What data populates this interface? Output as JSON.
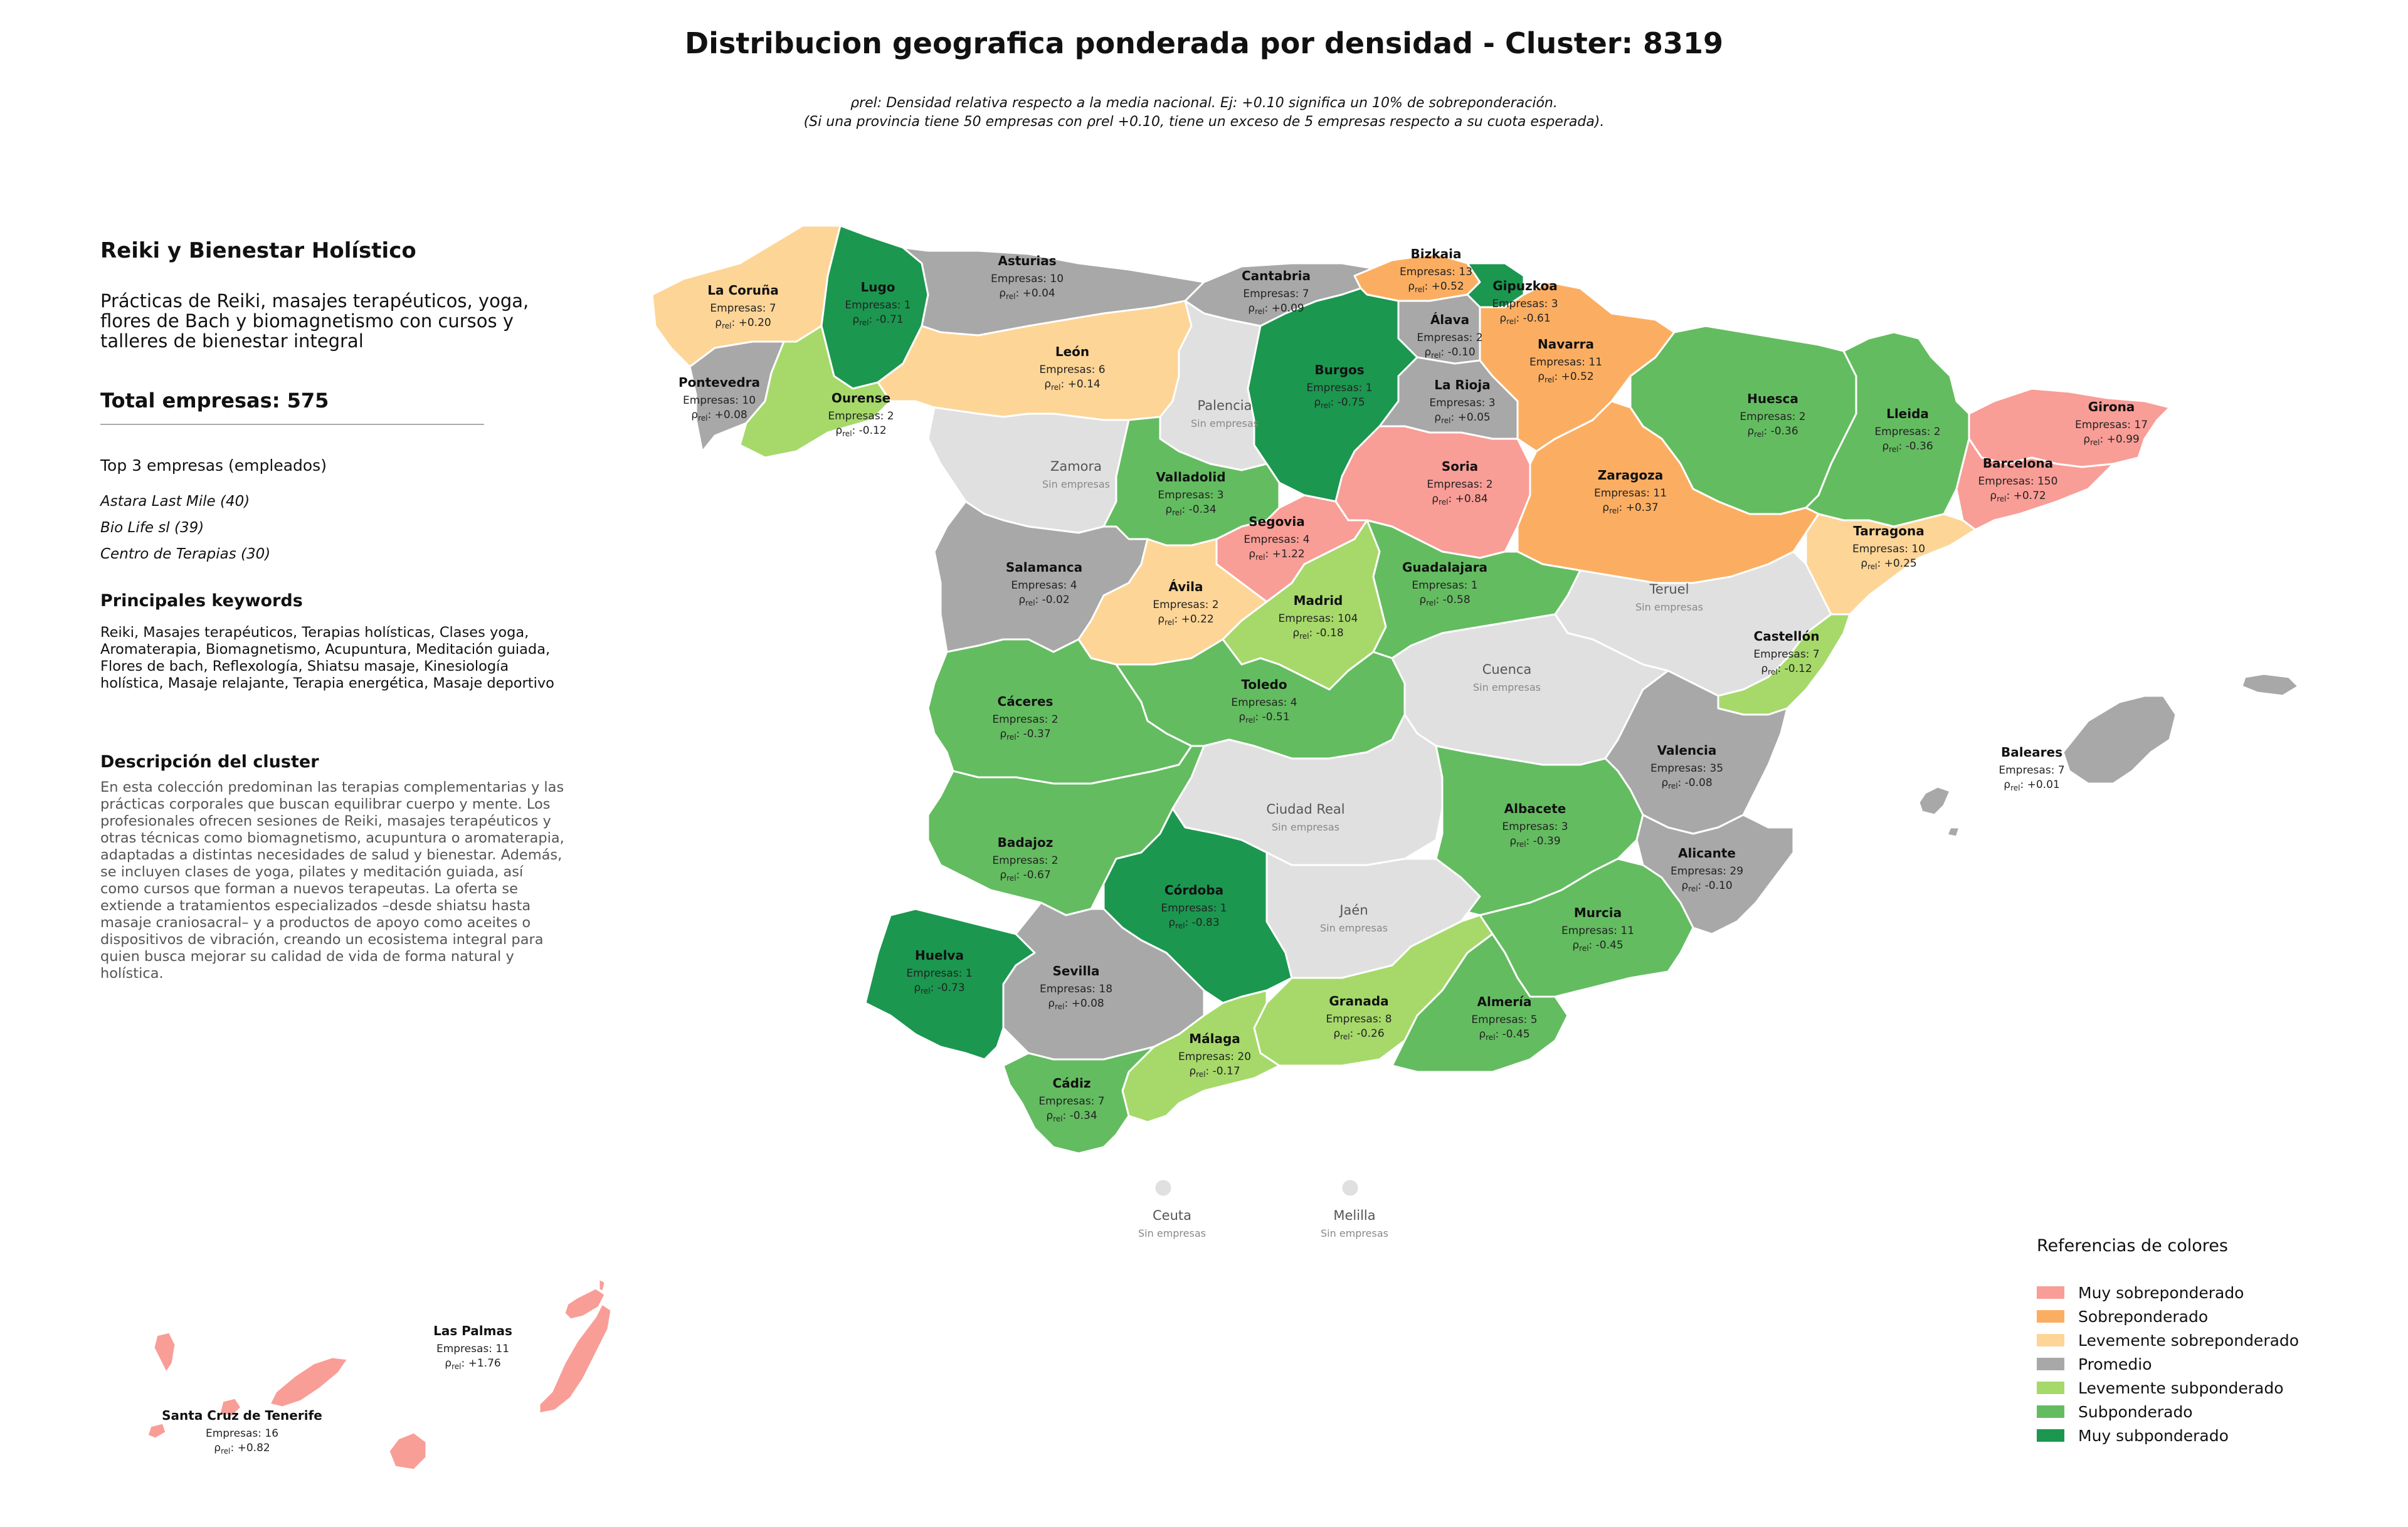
{
  "title": "Distribucion geografica ponderada por densidad - Cluster: 8319",
  "subtitle_line1": "ρrel: Densidad relativa respecto a la media nacional. Ej: +0.10 significa un 10% de sobreponderación.",
  "subtitle_line2": "(Si una provincia tiene 50 empresas con ρrel +0.10, tiene un exceso de 5 empresas respecto a su cuota esperada).",
  "panel": {
    "title": "Reiki y Bienestar Holístico",
    "description": "Prácticas de Reiki, masajes terapéuticos, yoga, flores de Bach y biomagnetismo con cursos y talleres de bienestar integral",
    "total": "Total empresas: 575",
    "top3_title": "Top 3 empresas (empleados)",
    "top3": [
      "Astara Last Mile (40)",
      "Bio Life sl (39)",
      "Centro de Terapias (30)"
    ],
    "keywords_title": "Principales keywords",
    "keywords": "Reiki, Masajes terapéuticos, Terapias holísticas, Clases yoga, Aromaterapia, Biomagnetismo, Acupuntura, Meditación guiada, Flores de bach, Reflexología, Shiatsu masaje, Kinesiología holística, Masaje relajante, Terapia energética, Masaje deportivo",
    "cluster_desc_title": "Descripción del cluster",
    "cluster_desc": "En esta colección predominan las terapias complementarias y las prácticas corporales que buscan equilibrar cuerpo y mente. Los profesionales ofrecen sesiones de Reiki, masajes terapéuticos y otras técnicas como biomagnetismo, acupuntura o aromaterapia, adaptadas a distintas necesidades de salud y bienestar. Además, se incluyen clases de yoga, pilates y meditación guiada, así como cursos que forman a nuevos terapeutas. La oferta se extiende a tratamientos especializados –desde shiatsu hasta masaje craniosacral– y a productos de apoyo como aceites o dispositivos de vibración, creando un ecosistema integral para quien busca mejorar su calidad de vida de forma natural y holística."
  },
  "colors": {
    "muy_sobre": "#f99d97",
    "sobre": "#fbae62",
    "lev_sobre": "#fdd597",
    "promedio": "#a8a8a8",
    "lev_sub": "#a6d96a",
    "sub": "#64bc61",
    "muy_sub": "#1b9750",
    "sin": "#e0e0e0"
  },
  "legend": {
    "title": "Referencias de colores",
    "items": [
      {
        "label": "Muy sobreponderado",
        "key": "muy_sobre"
      },
      {
        "label": "Sobreponderado",
        "key": "sobre"
      },
      {
        "label": "Levemente sobreponderado",
        "key": "lev_sobre"
      },
      {
        "label": "Promedio",
        "key": "promedio"
      },
      {
        "label": "Levemente subponderado",
        "key": "lev_sub"
      },
      {
        "label": "Subponderado",
        "key": "sub"
      },
      {
        "label": "Muy subponderado",
        "key": "muy_sub"
      }
    ]
  },
  "provinces": [
    {
      "id": "lacoruna",
      "name": "La Coruña",
      "empresas": "Empresas: 7",
      "rho": "+0.20",
      "cat": "lev_sobre"
    },
    {
      "id": "lugo",
      "name": "Lugo",
      "empresas": "Empresas: 1",
      "rho": "-0.71",
      "cat": "muy_sub"
    },
    {
      "id": "asturias",
      "name": "Asturias",
      "empresas": "Empresas: 10",
      "rho": "+0.04",
      "cat": "promedio"
    },
    {
      "id": "cantabria",
      "name": "Cantabria",
      "empresas": "Empresas: 7",
      "rho": "+0.09",
      "cat": "promedio"
    },
    {
      "id": "bizkaia",
      "name": "Bizkaia",
      "empresas": "Empresas: 13",
      "rho": "+0.52",
      "cat": "sobre"
    },
    {
      "id": "gipuzkoa",
      "name": "Gipuzkoa",
      "empresas": "Empresas: 3",
      "rho": "-0.61",
      "cat": "muy_sub"
    },
    {
      "id": "alava",
      "name": "Álava",
      "empresas": "Empresas: 2",
      "rho": "-0.10",
      "cat": "promedio"
    },
    {
      "id": "navarra",
      "name": "Navarra",
      "empresas": "Empresas: 11",
      "rho": "+0.52",
      "cat": "sobre"
    },
    {
      "id": "pontevedra",
      "name": "Pontevedra",
      "empresas": "Empresas: 10",
      "rho": "+0.08",
      "cat": "promedio"
    },
    {
      "id": "ourense",
      "name": "Ourense",
      "empresas": "Empresas: 2",
      "rho": "-0.12",
      "cat": "lev_sub"
    },
    {
      "id": "leon",
      "name": "León",
      "empresas": "Empresas: 6",
      "rho": "+0.14",
      "cat": "lev_sobre"
    },
    {
      "id": "palencia",
      "name": "Palencia",
      "empresas": "Sin empresas",
      "rho": null,
      "cat": "sin"
    },
    {
      "id": "burgos",
      "name": "Burgos",
      "empresas": "Empresas: 1",
      "rho": "-0.75",
      "cat": "muy_sub"
    },
    {
      "id": "larioja",
      "name": "La Rioja",
      "empresas": "Empresas: 3",
      "rho": "+0.05",
      "cat": "promedio"
    },
    {
      "id": "huesca",
      "name": "Huesca",
      "empresas": "Empresas: 2",
      "rho": "-0.36",
      "cat": "sub"
    },
    {
      "id": "lleida",
      "name": "Lleida",
      "empresas": "Empresas: 2",
      "rho": "-0.36",
      "cat": "sub"
    },
    {
      "id": "girona",
      "name": "Girona",
      "empresas": "Empresas: 17",
      "rho": "+0.99",
      "cat": "muy_sobre"
    },
    {
      "id": "barcelona",
      "name": "Barcelona",
      "empresas": "Empresas: 150",
      "rho": "+0.72",
      "cat": "muy_sobre"
    },
    {
      "id": "zamora",
      "name": "Zamora",
      "empresas": "Sin empresas",
      "rho": null,
      "cat": "sin"
    },
    {
      "id": "valladolid",
      "name": "Valladolid",
      "empresas": "Empresas: 3",
      "rho": "-0.34",
      "cat": "sub"
    },
    {
      "id": "soria",
      "name": "Soria",
      "empresas": "Empresas: 2",
      "rho": "+0.84",
      "cat": "muy_sobre"
    },
    {
      "id": "zaragoza",
      "name": "Zaragoza",
      "empresas": "Empresas: 11",
      "rho": "+0.37",
      "cat": "sobre"
    },
    {
      "id": "tarragona",
      "name": "Tarragona",
      "empresas": "Empresas: 10",
      "rho": "+0.25",
      "cat": "lev_sobre"
    },
    {
      "id": "salamanca",
      "name": "Salamanca",
      "empresas": "Empresas: 4",
      "rho": "-0.02",
      "cat": "promedio"
    },
    {
      "id": "segovia",
      "name": "Segovia",
      "empresas": "Empresas: 4",
      "rho": "+1.22",
      "cat": "muy_sobre"
    },
    {
      "id": "avila",
      "name": "Ávila",
      "empresas": "Empresas: 2",
      "rho": "+0.22",
      "cat": "lev_sobre"
    },
    {
      "id": "madrid",
      "name": "Madrid",
      "empresas": "Empresas: 104",
      "rho": "-0.18",
      "cat": "lev_sub"
    },
    {
      "id": "guadalajara",
      "name": "Guadalajara",
      "empresas": "Empresas: 1",
      "rho": "-0.58",
      "cat": "sub"
    },
    {
      "id": "teruel",
      "name": "Teruel",
      "empresas": "Sin empresas",
      "rho": null,
      "cat": "sin"
    },
    {
      "id": "castellon",
      "name": "Castellón",
      "empresas": "Empresas: 7",
      "rho": "-0.12",
      "cat": "lev_sub"
    },
    {
      "id": "caceres",
      "name": "Cáceres",
      "empresas": "Empresas: 2",
      "rho": "-0.37",
      "cat": "sub"
    },
    {
      "id": "toledo",
      "name": "Toledo",
      "empresas": "Empresas: 4",
      "rho": "-0.51",
      "cat": "sub"
    },
    {
      "id": "cuenca",
      "name": "Cuenca",
      "empresas": "Sin empresas",
      "rho": null,
      "cat": "sin"
    },
    {
      "id": "valencia",
      "name": "Valencia",
      "empresas": "Empresas: 35",
      "rho": "-0.08",
      "cat": "promedio"
    },
    {
      "id": "baleares",
      "name": "Baleares",
      "empresas": "Empresas: 7",
      "rho": "+0.01",
      "cat": "promedio"
    },
    {
      "id": "badajoz",
      "name": "Badajoz",
      "empresas": "Empresas: 2",
      "rho": "-0.67",
      "cat": "sub"
    },
    {
      "id": "ciudadreal",
      "name": "Ciudad Real",
      "empresas": "Sin empresas",
      "rho": null,
      "cat": "sin"
    },
    {
      "id": "albacete",
      "name": "Albacete",
      "empresas": "Empresas: 3",
      "rho": "-0.39",
      "cat": "sub"
    },
    {
      "id": "alicante",
      "name": "Alicante",
      "empresas": "Empresas: 29",
      "rho": "-0.10",
      "cat": "promedio"
    },
    {
      "id": "cordoba",
      "name": "Córdoba",
      "empresas": "Empresas: 1",
      "rho": "-0.83",
      "cat": "muy_sub"
    },
    {
      "id": "jaen",
      "name": "Jaén",
      "empresas": "Sin empresas",
      "rho": null,
      "cat": "sin"
    },
    {
      "id": "murcia",
      "name": "Murcia",
      "empresas": "Empresas: 11",
      "rho": "-0.45",
      "cat": "sub"
    },
    {
      "id": "huelva",
      "name": "Huelva",
      "empresas": "Empresas: 1",
      "rho": "-0.73",
      "cat": "muy_sub"
    },
    {
      "id": "sevilla",
      "name": "Sevilla",
      "empresas": "Empresas: 18",
      "rho": "+0.08",
      "cat": "promedio"
    },
    {
      "id": "granada",
      "name": "Granada",
      "empresas": "Empresas: 8",
      "rho": "-0.26",
      "cat": "lev_sub"
    },
    {
      "id": "almeria",
      "name": "Almería",
      "empresas": "Empresas: 5",
      "rho": "-0.45",
      "cat": "sub"
    },
    {
      "id": "malaga",
      "name": "Málaga",
      "empresas": "Empresas: 20",
      "rho": "-0.17",
      "cat": "lev_sub"
    },
    {
      "id": "cadiz",
      "name": "Cádiz",
      "empresas": "Empresas: 7",
      "rho": "-0.34",
      "cat": "sub"
    },
    {
      "id": "ceuta",
      "name": "Ceuta",
      "empresas": "Sin empresas",
      "rho": null,
      "cat": "sin"
    },
    {
      "id": "melilla",
      "name": "Melilla",
      "empresas": "Sin empresas",
      "rho": null,
      "cat": "sin"
    },
    {
      "id": "laspalmas",
      "name": "Las Palmas",
      "empresas": "Empresas: 11",
      "rho": "+1.76",
      "cat": "muy_sobre"
    },
    {
      "id": "tenerife",
      "name": "Santa Cruz de Tenerife",
      "empresas": "Empresas: 16",
      "rho": "+0.82",
      "cat": "muy_sobre"
    }
  ]
}
